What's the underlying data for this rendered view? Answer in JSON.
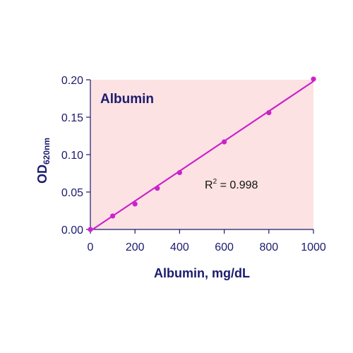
{
  "chart_data": {
    "type": "scatter",
    "title": "Albumin",
    "xlabel": "Albumin, mg/dL",
    "ylabel": {
      "main": "OD",
      "subscript": "620nm"
    },
    "xlim": [
      0,
      1000
    ],
    "ylim": [
      0,
      0.2
    ],
    "xticks": [
      0,
      200,
      400,
      600,
      800,
      1000
    ],
    "yticks": [
      0.0,
      0.05,
      0.1,
      0.15,
      0.2
    ],
    "xtick_labels": [
      "0",
      "200",
      "400",
      "600",
      "800",
      "1000"
    ],
    "ytick_labels": [
      "0.00",
      "0.05",
      "0.10",
      "0.15",
      "0.20"
    ],
    "grid": false,
    "series": [
      {
        "x": [
          0,
          100,
          200,
          300,
          400,
          600,
          800,
          1000
        ],
        "y": [
          0.0,
          0.018,
          0.034,
          0.055,
          0.076,
          0.117,
          0.156,
          0.201
        ]
      }
    ],
    "fit_line": {
      "x": [
        0,
        1000
      ],
      "y": [
        -0.002,
        0.198
      ]
    },
    "annotation": {
      "r_label": "R",
      "r_superscript": "2",
      "r_value": " = 0.998"
    },
    "colors": {
      "plot_background": "#fce2e2",
      "series": "#cc22cc",
      "text": "#1b1b6e",
      "axis": "#1b1b6e"
    }
  }
}
